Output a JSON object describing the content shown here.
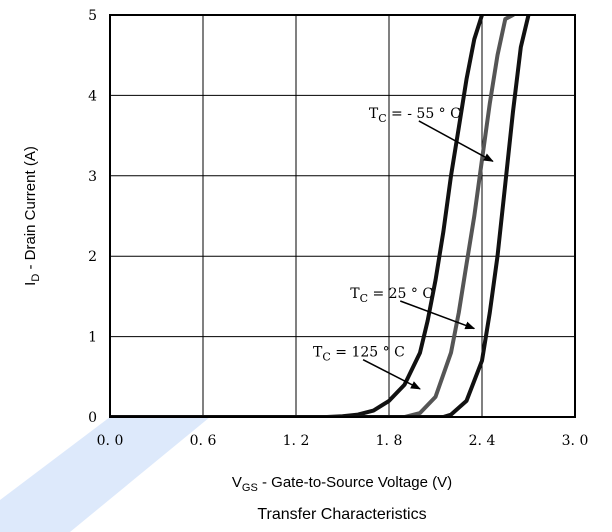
{
  "chart_data": {
    "type": "line",
    "title": "Transfer Characteristics",
    "xlabel": {
      "main": "V",
      "sub": "GS",
      "rest": " - Gate-to-Source Voltage (V)"
    },
    "ylabel": {
      "main": "I",
      "sub": "D",
      "rest": " - Drain Current (A)"
    },
    "xlim": [
      0,
      3
    ],
    "ylim": [
      0,
      5
    ],
    "xticks": [
      0,
      0.6,
      1.2,
      1.8,
      2.4,
      3.0
    ],
    "xtick_labels": [
      "0. 0",
      "0. 6",
      "1. 2",
      "1. 8",
      "2. 4",
      "3. 0"
    ],
    "yticks": [
      0,
      1,
      2,
      3,
      4,
      5
    ],
    "ytick_labels": [
      "0",
      "1",
      "2",
      "3",
      "4",
      "5"
    ],
    "grid": true,
    "series": [
      {
        "name": "T_C = 125 °C",
        "label_main": "T",
        "label_sub": "C",
        "label_rest": " = 125 ° C",
        "color": "#111111",
        "x": [
          0.0,
          1.4,
          1.5,
          1.6,
          1.7,
          1.8,
          1.9,
          2.0,
          2.05,
          2.1,
          2.15,
          2.2,
          2.25,
          2.3,
          2.35,
          2.4
        ],
        "y": [
          0.0,
          0.0,
          0.01,
          0.03,
          0.08,
          0.2,
          0.4,
          0.8,
          1.2,
          1.7,
          2.3,
          3.0,
          3.6,
          4.2,
          4.7,
          5.0
        ]
      },
      {
        "name": "T_C = 25 °C",
        "label_main": "T",
        "label_sub": "C",
        "label_rest": " = 25 ° C",
        "color": "#555555",
        "x": [
          0.0,
          1.9,
          2.0,
          2.1,
          2.2,
          2.25,
          2.3,
          2.35,
          2.4,
          2.45,
          2.5,
          2.55,
          2.6
        ],
        "y": [
          0.0,
          0.0,
          0.05,
          0.25,
          0.8,
          1.3,
          1.9,
          2.5,
          3.2,
          3.9,
          4.5,
          4.95,
          5.0
        ]
      },
      {
        "name": "T_C = -55 °C",
        "label_main": "T",
        "label_sub": "C",
        "label_rest": " = - 55 ° C",
        "color": "#111111",
        "x": [
          0.0,
          2.15,
          2.2,
          2.3,
          2.4,
          2.45,
          2.5,
          2.55,
          2.6,
          2.65,
          2.7
        ],
        "y": [
          0.0,
          0.0,
          0.03,
          0.2,
          0.7,
          1.3,
          2.0,
          2.9,
          3.8,
          4.6,
          5.0
        ]
      }
    ],
    "annotations": [
      {
        "series": 0,
        "text_x": 1.31,
        "text_y": 0.75,
        "arrow_to_x": 2.0,
        "arrow_to_y": 0.35
      },
      {
        "series": 1,
        "text_x": 1.55,
        "text_y": 1.48,
        "arrow_to_x": 2.35,
        "arrow_to_y": 1.1
      },
      {
        "series": 2,
        "text_x": 1.67,
        "text_y": 3.72,
        "arrow_to_x": 2.47,
        "arrow_to_y": 3.18
      }
    ]
  }
}
